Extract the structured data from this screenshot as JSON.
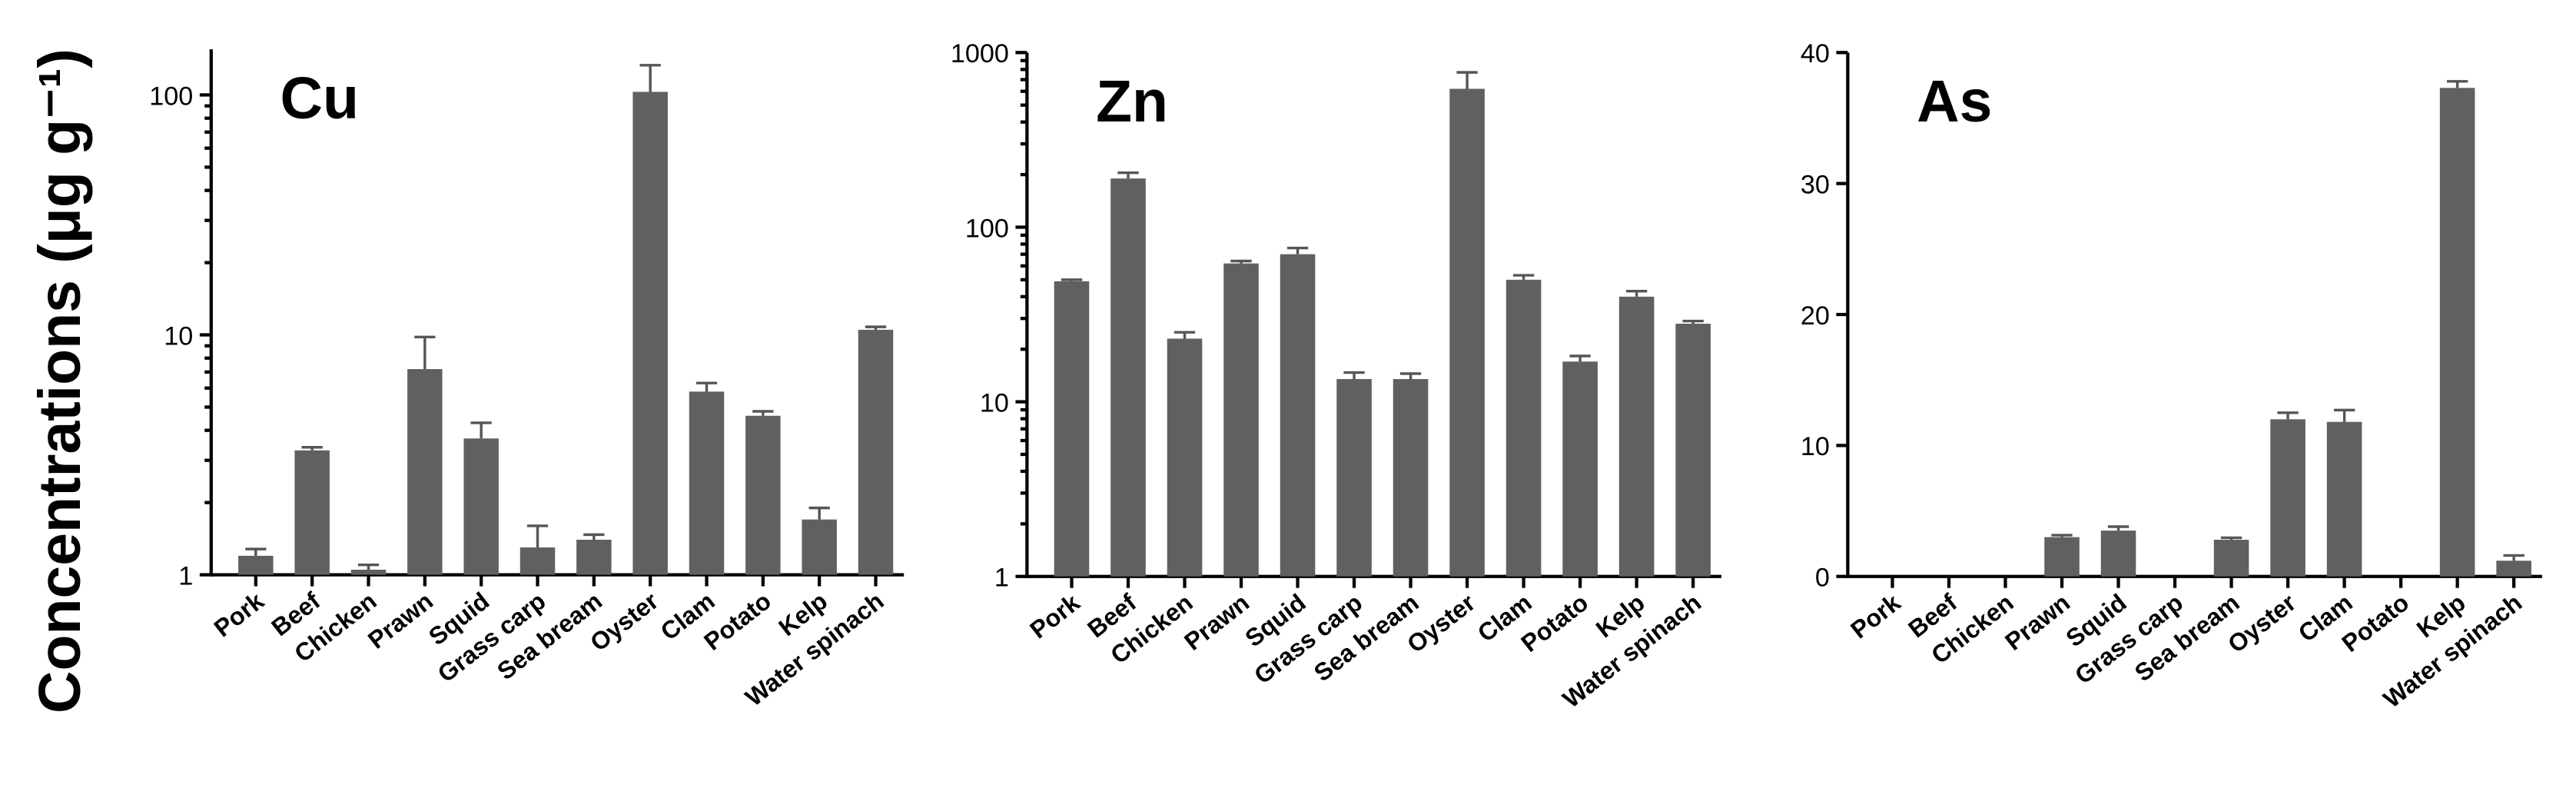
{
  "ylabel": "Concentrations (μg g⁻¹)",
  "chart_data": [
    {
      "type": "bar",
      "title": "Cu",
      "log": true,
      "color": "#606060",
      "categories": [
        "Pork",
        "Beef",
        "Chicken",
        "Prawn",
        "Squid",
        "Grass carp",
        "Sea bream",
        "Oyster",
        "Clam",
        "Potato",
        "Kelp",
        "Water spinach"
      ],
      "values": [
        1.2,
        3.3,
        1.05,
        7.2,
        3.7,
        1.3,
        1.4,
        103,
        5.8,
        4.6,
        1.7,
        10.5
      ],
      "errors": [
        0.08,
        0.1,
        0.05,
        2.6,
        0.6,
        0.3,
        0.07,
        30,
        0.5,
        0.2,
        0.2,
        0.3
      ],
      "ylim": [
        1,
        155
      ],
      "yticks": [
        1,
        10,
        100
      ]
    },
    {
      "type": "bar",
      "title": "Zn",
      "log": true,
      "color": "#606060",
      "categories": [
        "Pork",
        "Beef",
        "Chicken",
        "Prawn",
        "Squid",
        "Grass carp",
        "Sea bream",
        "Oyster",
        "Clam",
        "Potato",
        "Kelp",
        "Water spinach"
      ],
      "values": [
        49,
        190,
        23,
        62,
        70,
        13.5,
        13.5,
        620,
        50,
        17,
        40,
        28
      ],
      "errors": [
        1,
        15,
        2,
        2,
        6,
        1.2,
        1,
        150,
        3,
        1.3,
        3,
        1
      ],
      "ylim": [
        1,
        1000
      ],
      "yticks": [
        1,
        10,
        100,
        1000
      ]
    },
    {
      "type": "bar",
      "title": "As",
      "log": false,
      "color": "#606060",
      "categories": [
        "Pork",
        "Beef",
        "Chicken",
        "Prawn",
        "Squid",
        "Grass carp",
        "Sea bream",
        "Oyster",
        "Clam",
        "Potato",
        "Kelp",
        "Water spinach"
      ],
      "values": [
        null,
        null,
        null,
        3,
        3.5,
        null,
        2.8,
        12,
        11.8,
        null,
        37.3,
        1.2
      ],
      "errors": [
        null,
        null,
        null,
        0.15,
        0.3,
        null,
        0.15,
        0.5,
        0.9,
        null,
        0.5,
        0.4
      ],
      "ylim": [
        0,
        40
      ],
      "yticks": [
        0,
        10,
        20,
        30,
        40
      ]
    }
  ]
}
